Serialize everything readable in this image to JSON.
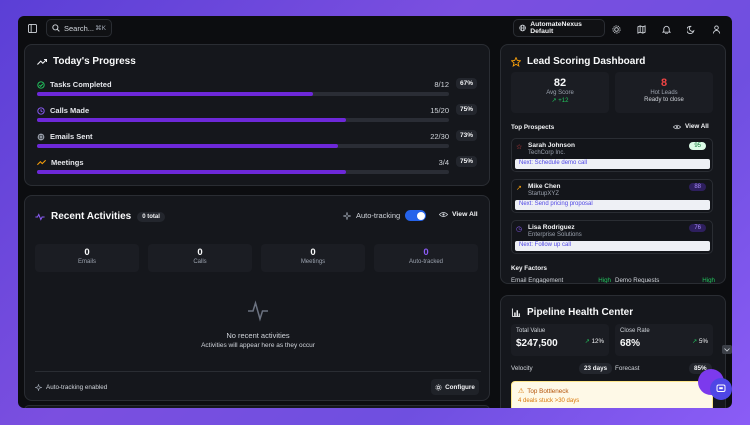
{
  "topbar": {
    "search_label": "Search...",
    "search_shortcut": "⌘K",
    "workspace": "AutomateNexus Default"
  },
  "progress": {
    "title": "Today's Progress",
    "rows": [
      {
        "label": "Tasks Completed",
        "count": "8/12",
        "pct": "67%",
        "value": 0.67,
        "color": "#22c55e"
      },
      {
        "label": "Calls Made",
        "count": "15/20",
        "pct": "75%",
        "value": 0.75,
        "color": "#8b5cf6"
      },
      {
        "label": "Emails Sent",
        "count": "22/30",
        "pct": "73%",
        "value": 0.73,
        "color": "#9ca3af"
      },
      {
        "label": "Meetings",
        "count": "3/4",
        "pct": "75%",
        "value": 0.75,
        "color": "#f59e0b"
      }
    ]
  },
  "activities": {
    "title": "Recent Activities",
    "total_badge": "0 total",
    "auto_tracking_label": "Auto-tracking",
    "view_all": "View All",
    "stats": [
      {
        "value": "0",
        "label": "Emails"
      },
      {
        "value": "0",
        "label": "Calls"
      },
      {
        "value": "0",
        "label": "Meetings"
      },
      {
        "value": "0",
        "label": "Auto-tracked"
      }
    ],
    "empty_title": "No recent activities",
    "empty_sub": "Activities will appear here as they occur",
    "footer_status": "Auto-tracking enabled",
    "configure": "Configure"
  },
  "lead": {
    "title": "Lead Scoring Dashboard",
    "avg_score": "82",
    "avg_score_label": "Avg Score",
    "avg_trend": "+12",
    "hot_leads": "8",
    "hot_leads_label": "Hot Leads",
    "hot_leads_sub": "Ready to close",
    "top_prospects_label": "Top Prospects",
    "view_all": "View All",
    "prospects": [
      {
        "name": "Sarah Johnson",
        "company": "TechCorp Inc.",
        "score": "95",
        "next": "Next: Schedule demo call"
      },
      {
        "name": "Mike Chen",
        "company": "StartupXYZ",
        "score": "88",
        "next": "Next: Send pricing proposal"
      },
      {
        "name": "Lisa Rodriguez",
        "company": "Enterprise Solutions",
        "score": "76",
        "next": "Next: Follow up call"
      }
    ],
    "key_factors_label": "Key Factors",
    "factors": [
      {
        "label": "Email Engagement",
        "value": "High"
      },
      {
        "label": "Demo Requests",
        "value": "High"
      }
    ]
  },
  "pipeline": {
    "title": "Pipeline Health Center",
    "total_value_label": "Total Value",
    "total_value": "$247,500",
    "total_value_trend": "12%",
    "close_rate_label": "Close Rate",
    "close_rate": "68%",
    "close_rate_trend": "5%",
    "velocity_label": "Velocity",
    "velocity": "23 days",
    "forecast_label": "Forecast",
    "forecast": "85%",
    "bottleneck_title": "Top Bottleneck",
    "bottleneck_sub": "4 deals stuck >30 days"
  }
}
